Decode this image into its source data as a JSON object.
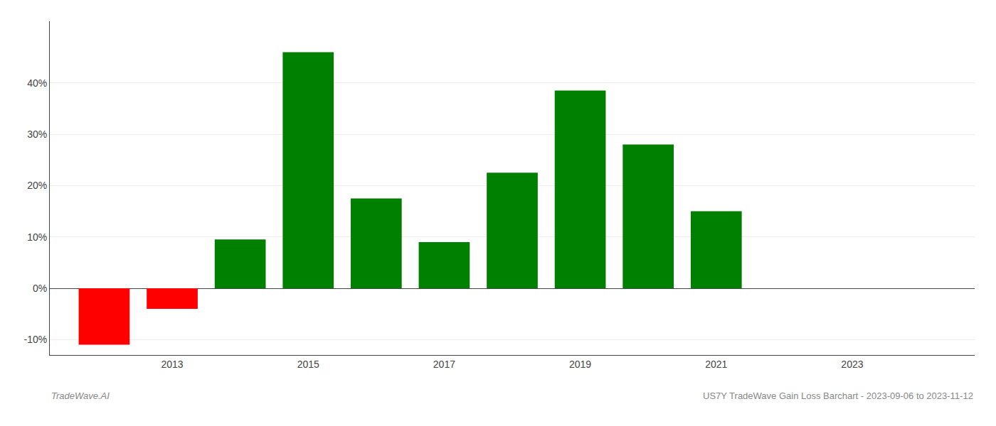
{
  "chart_data": {
    "type": "bar",
    "x": [
      2012,
      2013,
      2014,
      2015,
      2016,
      2017,
      2018,
      2019,
      2020,
      2021
    ],
    "values": [
      -11.0,
      -4.0,
      9.5,
      46.0,
      17.5,
      9.0,
      22.5,
      38.5,
      28.0,
      15.0
    ],
    "colors": [
      "#ff0000",
      "#ff0000",
      "#008000",
      "#008000",
      "#008000",
      "#008000",
      "#008000",
      "#008000",
      "#008000",
      "#008000"
    ],
    "xlim": [
      2011.2,
      2024.8
    ],
    "xticks": [
      2013,
      2015,
      2017,
      2019,
      2021,
      2023
    ],
    "ylim": [
      -13,
      52
    ],
    "yticks": [
      {
        "value": -10,
        "label": "-10%"
      },
      {
        "value": 0,
        "label": "0%"
      },
      {
        "value": 10,
        "label": "10%"
      },
      {
        "value": 20,
        "label": "20%"
      },
      {
        "value": 30,
        "label": "30%"
      },
      {
        "value": 40,
        "label": "40%"
      }
    ],
    "grid": "y",
    "annotations": [
      "TradeWave.AI",
      "US7Y TradeWave Gain Loss Barchart - 2023-09-06 to 2023-11-12"
    ]
  }
}
